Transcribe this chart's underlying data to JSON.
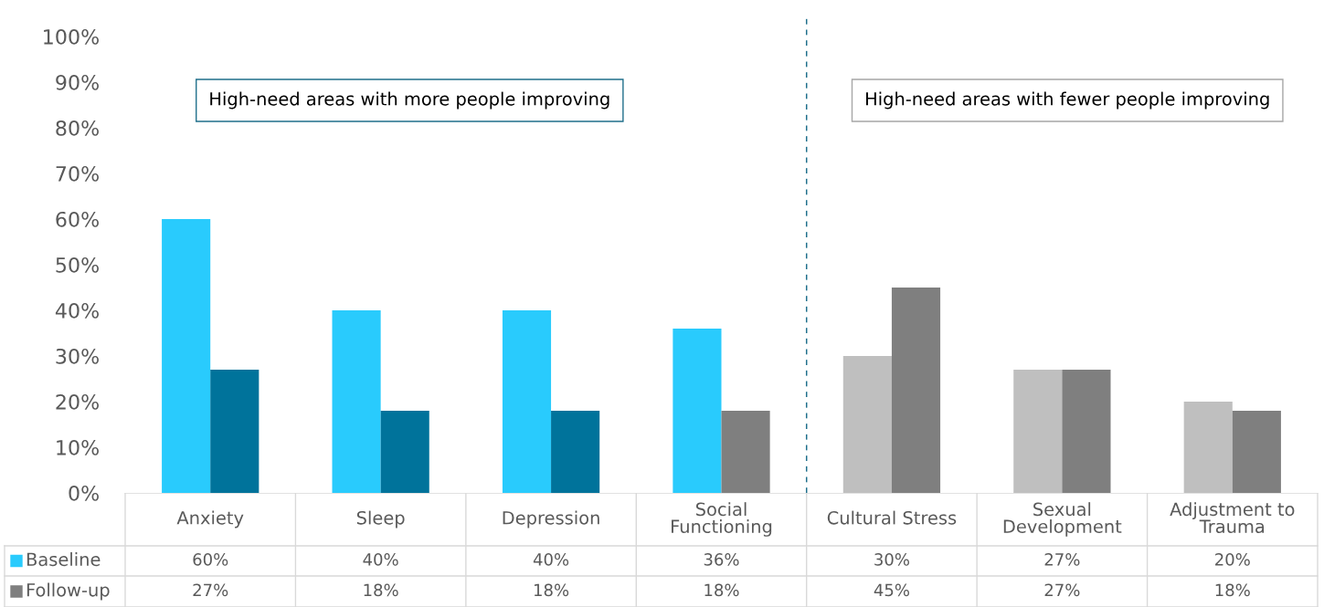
{
  "chart_data": {
    "type": "bar",
    "categories": [
      "Anxiety",
      "Sleep",
      "Depression",
      "Social\nFunctioning",
      "Cultural Stress",
      "Sexual\nDevelopment",
      "Adjustment to\nTrauma"
    ],
    "series": [
      {
        "name": "Baseline",
        "color": "#29cbfd",
        "colors": [
          "#29cbfd",
          "#29cbfd",
          "#29cbfd",
          "#29cbfd",
          "#bfbfbf",
          "#bfbfbf",
          "#bfbfbf"
        ],
        "values": [
          60,
          40,
          40,
          36,
          30,
          27,
          20
        ],
        "value_labels": [
          "60%",
          "40%",
          "40%",
          "36%",
          "30%",
          "27%",
          "20%"
        ]
      },
      {
        "name": "Follow-up",
        "color": "#7f7f7f",
        "colors": [
          "#00739b",
          "#00739b",
          "#00739b",
          "#7f7f7f",
          "#7f7f7f",
          "#7f7f7f",
          "#7f7f7f"
        ],
        "values": [
          27,
          18,
          18,
          18,
          45,
          27,
          18
        ],
        "value_labels": [
          "27%",
          "18%",
          "18%",
          "18%",
          "45%",
          "27%",
          "18%"
        ]
      }
    ],
    "ylim": [
      0,
      100
    ],
    "yticks": [
      {
        "value": 0,
        "label": "0%"
      },
      {
        "value": 10,
        "label": "10%"
      },
      {
        "value": 20,
        "label": "20%"
      },
      {
        "value": 30,
        "label": "30%"
      },
      {
        "value": 40,
        "label": "40%"
      },
      {
        "value": 50,
        "label": "50%"
      },
      {
        "value": 60,
        "label": "60%"
      },
      {
        "value": 70,
        "label": "70%"
      },
      {
        "value": 80,
        "label": "80%"
      },
      {
        "value": 90,
        "label": "90%"
      },
      {
        "value": 100,
        "label": "100%"
      }
    ],
    "annotations": [
      "High-need areas with more people improving",
      "High-need areas with fewer people improving"
    ],
    "grid": false,
    "legend": "bottom left"
  }
}
